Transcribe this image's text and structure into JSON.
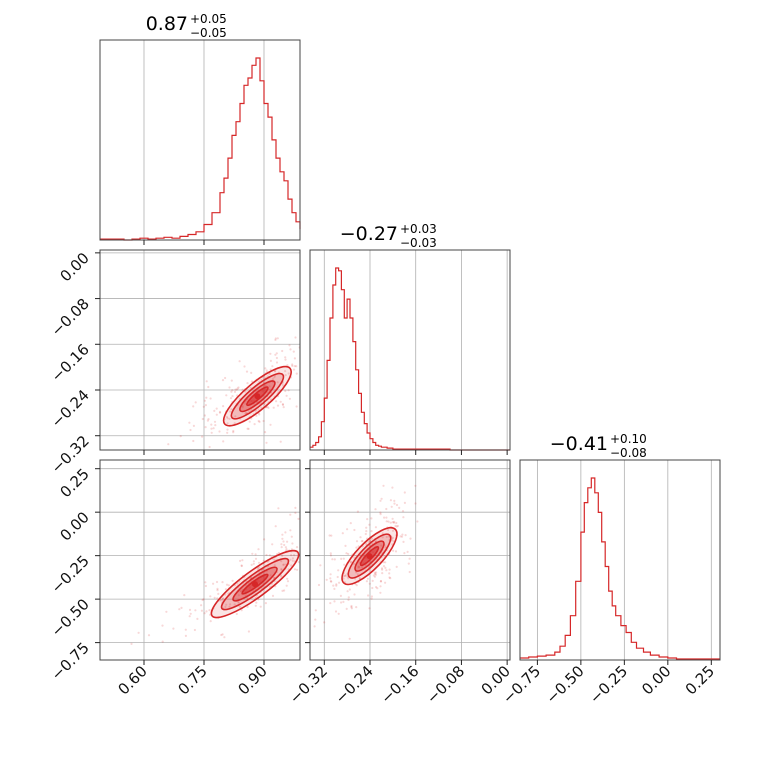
{
  "chart_data": {
    "type": "corner",
    "color": "#d62728",
    "params": [
      {
        "title_value": "0.87",
        "err_plus": "+0.05",
        "err_minus": "−0.05",
        "range": [
          0.49,
          0.99
        ],
        "ticks": [
          0.6,
          0.75,
          0.9
        ],
        "tick_labels": [
          "0.60",
          "0.75",
          "0.90"
        ],
        "hist": [
          [
            0.49,
            1
          ],
          [
            0.51,
            1
          ],
          [
            0.53,
            1
          ],
          [
            0.55,
            0
          ],
          [
            0.57,
            1
          ],
          [
            0.59,
            2
          ],
          [
            0.61,
            1
          ],
          [
            0.63,
            2
          ],
          [
            0.65,
            3
          ],
          [
            0.67,
            2
          ],
          [
            0.69,
            4
          ],
          [
            0.71,
            6
          ],
          [
            0.73,
            9
          ],
          [
            0.75,
            17
          ],
          [
            0.77,
            30
          ],
          [
            0.79,
            52
          ],
          [
            0.8,
            68
          ],
          [
            0.81,
            90
          ],
          [
            0.82,
            115
          ],
          [
            0.83,
            130
          ],
          [
            0.84,
            150
          ],
          [
            0.85,
            170
          ],
          [
            0.86,
            178
          ],
          [
            0.87,
            192
          ],
          [
            0.88,
            200
          ],
          [
            0.89,
            175
          ],
          [
            0.9,
            150
          ],
          [
            0.91,
            135
          ],
          [
            0.92,
            110
          ],
          [
            0.93,
            90
          ],
          [
            0.94,
            75
          ],
          [
            0.95,
            65
          ],
          [
            0.96,
            45
          ],
          [
            0.97,
            30
          ],
          [
            0.98,
            20
          ],
          [
            0.99,
            12
          ]
        ]
      },
      {
        "title_value": "−0.27",
        "err_plus": "+0.03",
        "err_minus": "−0.03",
        "range": [
          -0.345,
          0.005
        ],
        "ticks": [
          -0.32,
          -0.24,
          -0.16,
          -0.08,
          0.0
        ],
        "tick_labels": [
          "−0.32",
          "−0.24",
          "−0.16",
          "−0.08",
          "0.00"
        ],
        "hist": [
          [
            -0.345,
            3
          ],
          [
            -0.34,
            5
          ],
          [
            -0.335,
            8
          ],
          [
            -0.33,
            14
          ],
          [
            -0.325,
            30
          ],
          [
            -0.32,
            55
          ],
          [
            -0.315,
            95
          ],
          [
            -0.31,
            140
          ],
          [
            -0.305,
            175
          ],
          [
            -0.3,
            193
          ],
          [
            -0.295,
            190
          ],
          [
            -0.29,
            170
          ],
          [
            -0.285,
            140
          ],
          [
            -0.28,
            160
          ],
          [
            -0.275,
            140
          ],
          [
            -0.27,
            115
          ],
          [
            -0.265,
            85
          ],
          [
            -0.26,
            60
          ],
          [
            -0.255,
            40
          ],
          [
            -0.25,
            28
          ],
          [
            -0.245,
            18
          ],
          [
            -0.24,
            12
          ],
          [
            -0.235,
            8
          ],
          [
            -0.23,
            5
          ],
          [
            -0.225,
            4
          ],
          [
            -0.22,
            3
          ],
          [
            -0.21,
            2
          ],
          [
            -0.2,
            1
          ],
          [
            -0.18,
            1
          ],
          [
            -0.15,
            1
          ],
          [
            -0.1,
            0
          ],
          [
            0.0,
            0
          ]
        ]
      },
      {
        "title_value": "−0.41",
        "err_plus": "+0.10",
        "err_minus": "−0.08",
        "range": [
          -0.85,
          0.3
        ],
        "ticks": [
          -0.75,
          -0.5,
          -0.25,
          0.0,
          0.25
        ],
        "tick_labels": [
          "−0.75",
          "−0.50",
          "−0.25",
          "0.00",
          "0.25"
        ],
        "hist": [
          [
            -0.85,
            2
          ],
          [
            -0.8,
            3
          ],
          [
            -0.75,
            4
          ],
          [
            -0.7,
            5
          ],
          [
            -0.65,
            8
          ],
          [
            -0.62,
            14
          ],
          [
            -0.59,
            25
          ],
          [
            -0.56,
            45
          ],
          [
            -0.53,
            80
          ],
          [
            -0.5,
            130
          ],
          [
            -0.48,
            160
          ],
          [
            -0.46,
            175
          ],
          [
            -0.44,
            185
          ],
          [
            -0.42,
            170
          ],
          [
            -0.4,
            150
          ],
          [
            -0.38,
            120
          ],
          [
            -0.36,
            95
          ],
          [
            -0.34,
            70
          ],
          [
            -0.32,
            55
          ],
          [
            -0.3,
            45
          ],
          [
            -0.27,
            35
          ],
          [
            -0.24,
            28
          ],
          [
            -0.21,
            18
          ],
          [
            -0.18,
            12
          ],
          [
            -0.14,
            8
          ],
          [
            -0.1,
            5
          ],
          [
            -0.05,
            3
          ],
          [
            0.0,
            2
          ],
          [
            0.05,
            1
          ],
          [
            0.1,
            1
          ],
          [
            0.2,
            1
          ],
          [
            0.3,
            1
          ]
        ]
      }
    ],
    "pairs": [
      {
        "row": 1,
        "col": 0,
        "trend": [
          [
            0.55,
            -0.36
          ],
          [
            0.75,
            -0.31
          ],
          [
            0.85,
            -0.27
          ],
          [
            0.92,
            -0.23
          ],
          [
            0.99,
            -0.16
          ]
        ],
        "spread": [
          0.025,
          0.015
        ]
      },
      {
        "row": 2,
        "col": 0,
        "trend": [
          [
            0.55,
            -0.75
          ],
          [
            0.65,
            -0.7
          ],
          [
            0.75,
            -0.58
          ],
          [
            0.82,
            -0.5
          ],
          [
            0.9,
            -0.38
          ],
          [
            0.95,
            -0.26
          ],
          [
            0.99,
            -0.05
          ]
        ],
        "spread": [
          0.02,
          0.04
        ]
      },
      {
        "row": 2,
        "col": 1,
        "trend": [
          [
            -0.34,
            -0.6
          ],
          [
            -0.3,
            -0.45
          ],
          [
            -0.26,
            -0.32
          ],
          [
            -0.22,
            -0.18
          ],
          [
            -0.18,
            -0.05
          ]
        ],
        "spread": [
          0.012,
          0.07
        ]
      }
    ],
    "grid": true
  }
}
